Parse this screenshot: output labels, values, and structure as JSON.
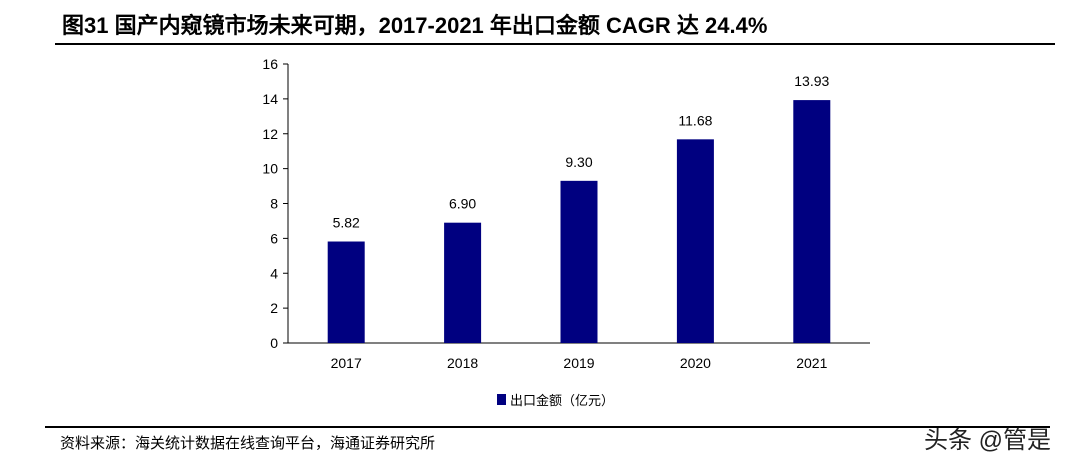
{
  "title": "图31 国产内窥镜市场未来可期，2017-2021 年出口金额 CAGR 达 24.4%",
  "source": "资料来源：海关统计数据在线查询平台，海通证券研究所",
  "watermark": "头条 @管是",
  "colors": {
    "bar": "#000080"
  },
  "chart_data": {
    "type": "bar",
    "title": "",
    "categories": [
      "2017",
      "2018",
      "2019",
      "2020",
      "2021"
    ],
    "series": [
      {
        "name": "出口金额（亿元）",
        "values": [
          5.82,
          6.9,
          9.3,
          11.68,
          13.93
        ]
      }
    ],
    "value_labels": [
      "5.82",
      "6.90",
      "9.30",
      "11.68",
      "13.93"
    ],
    "yticks": [
      0,
      2,
      4,
      6,
      8,
      10,
      12,
      14,
      16
    ],
    "ylim": [
      0,
      16
    ],
    "xlabel": "",
    "ylabel": "",
    "grid": false,
    "legend": "bottom"
  }
}
